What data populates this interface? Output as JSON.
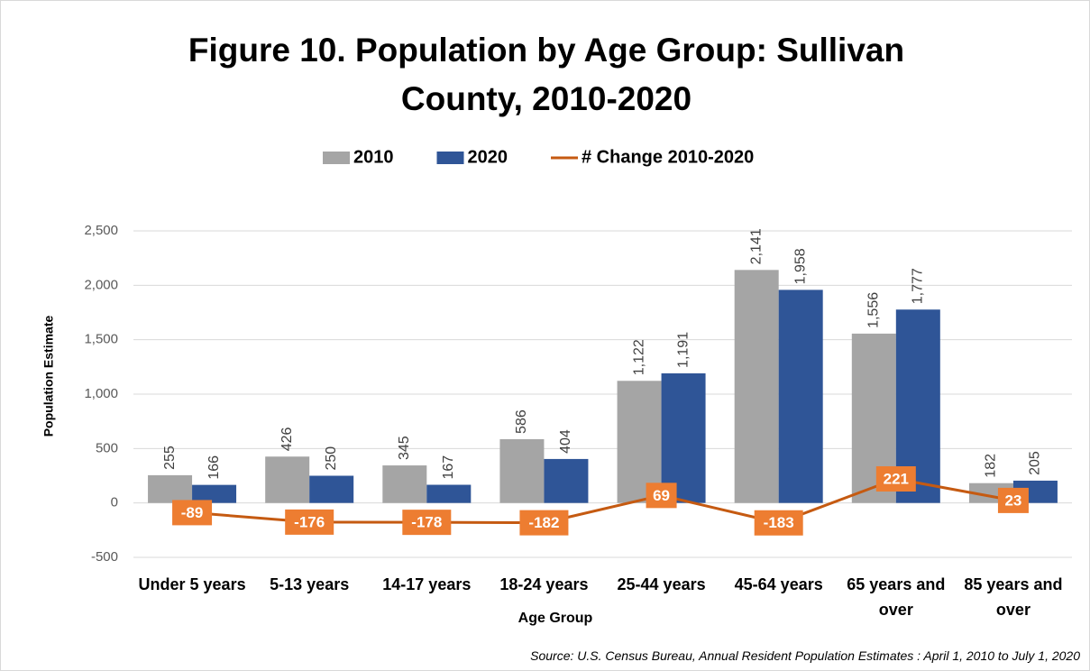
{
  "chart_data": {
    "type": "bar",
    "title": "Figure 10. Population by Age Group: Sullivan County, 2010-2020",
    "xlabel": "Age Group",
    "ylabel": "Population Estimate",
    "source": "Source: U.S. Census Bureau, Annual Resident Population Estimates : April 1, 2010 to July 1, 2020",
    "categories": [
      "Under 5 years",
      "5-13 years",
      "14-17 years",
      "18-24 years",
      "25-44 years",
      "45-64 years",
      "65 years and over",
      "85 years and over"
    ],
    "series": [
      {
        "name": "2010",
        "color": "#a5a5a5",
        "type": "bar",
        "values": [
          255,
          426,
          345,
          586,
          1122,
          2141,
          1556,
          182
        ],
        "value_labels": [
          "255",
          "426",
          "345",
          "586",
          "1,122",
          "2,141",
          "1,556",
          "182"
        ]
      },
      {
        "name": "2020",
        "color": "#2f5597",
        "type": "bar",
        "values": [
          166,
          250,
          167,
          404,
          1191,
          1958,
          1777,
          205
        ],
        "value_labels": [
          "166",
          "250",
          "167",
          "404",
          "1,191",
          "1,958",
          "1,777",
          "205"
        ]
      },
      {
        "name": "# Change 2010-2020",
        "color": "#c55a11",
        "label_color": "#ed7d31",
        "type": "line",
        "values": [
          -89,
          -176,
          -178,
          -182,
          69,
          -183,
          221,
          23
        ]
      }
    ],
    "ylim": [
      -500,
      2500
    ],
    "yticks": [
      -500,
      0,
      500,
      {
        "value": 1000,
        "label": "1,000"
      },
      {
        "value": 1500,
        "label": "1,500"
      },
      {
        "value": 2000,
        "label": "2,000"
      },
      {
        "value": 2500,
        "label": "2,500"
      }
    ],
    "grid": true,
    "legend": "top"
  }
}
